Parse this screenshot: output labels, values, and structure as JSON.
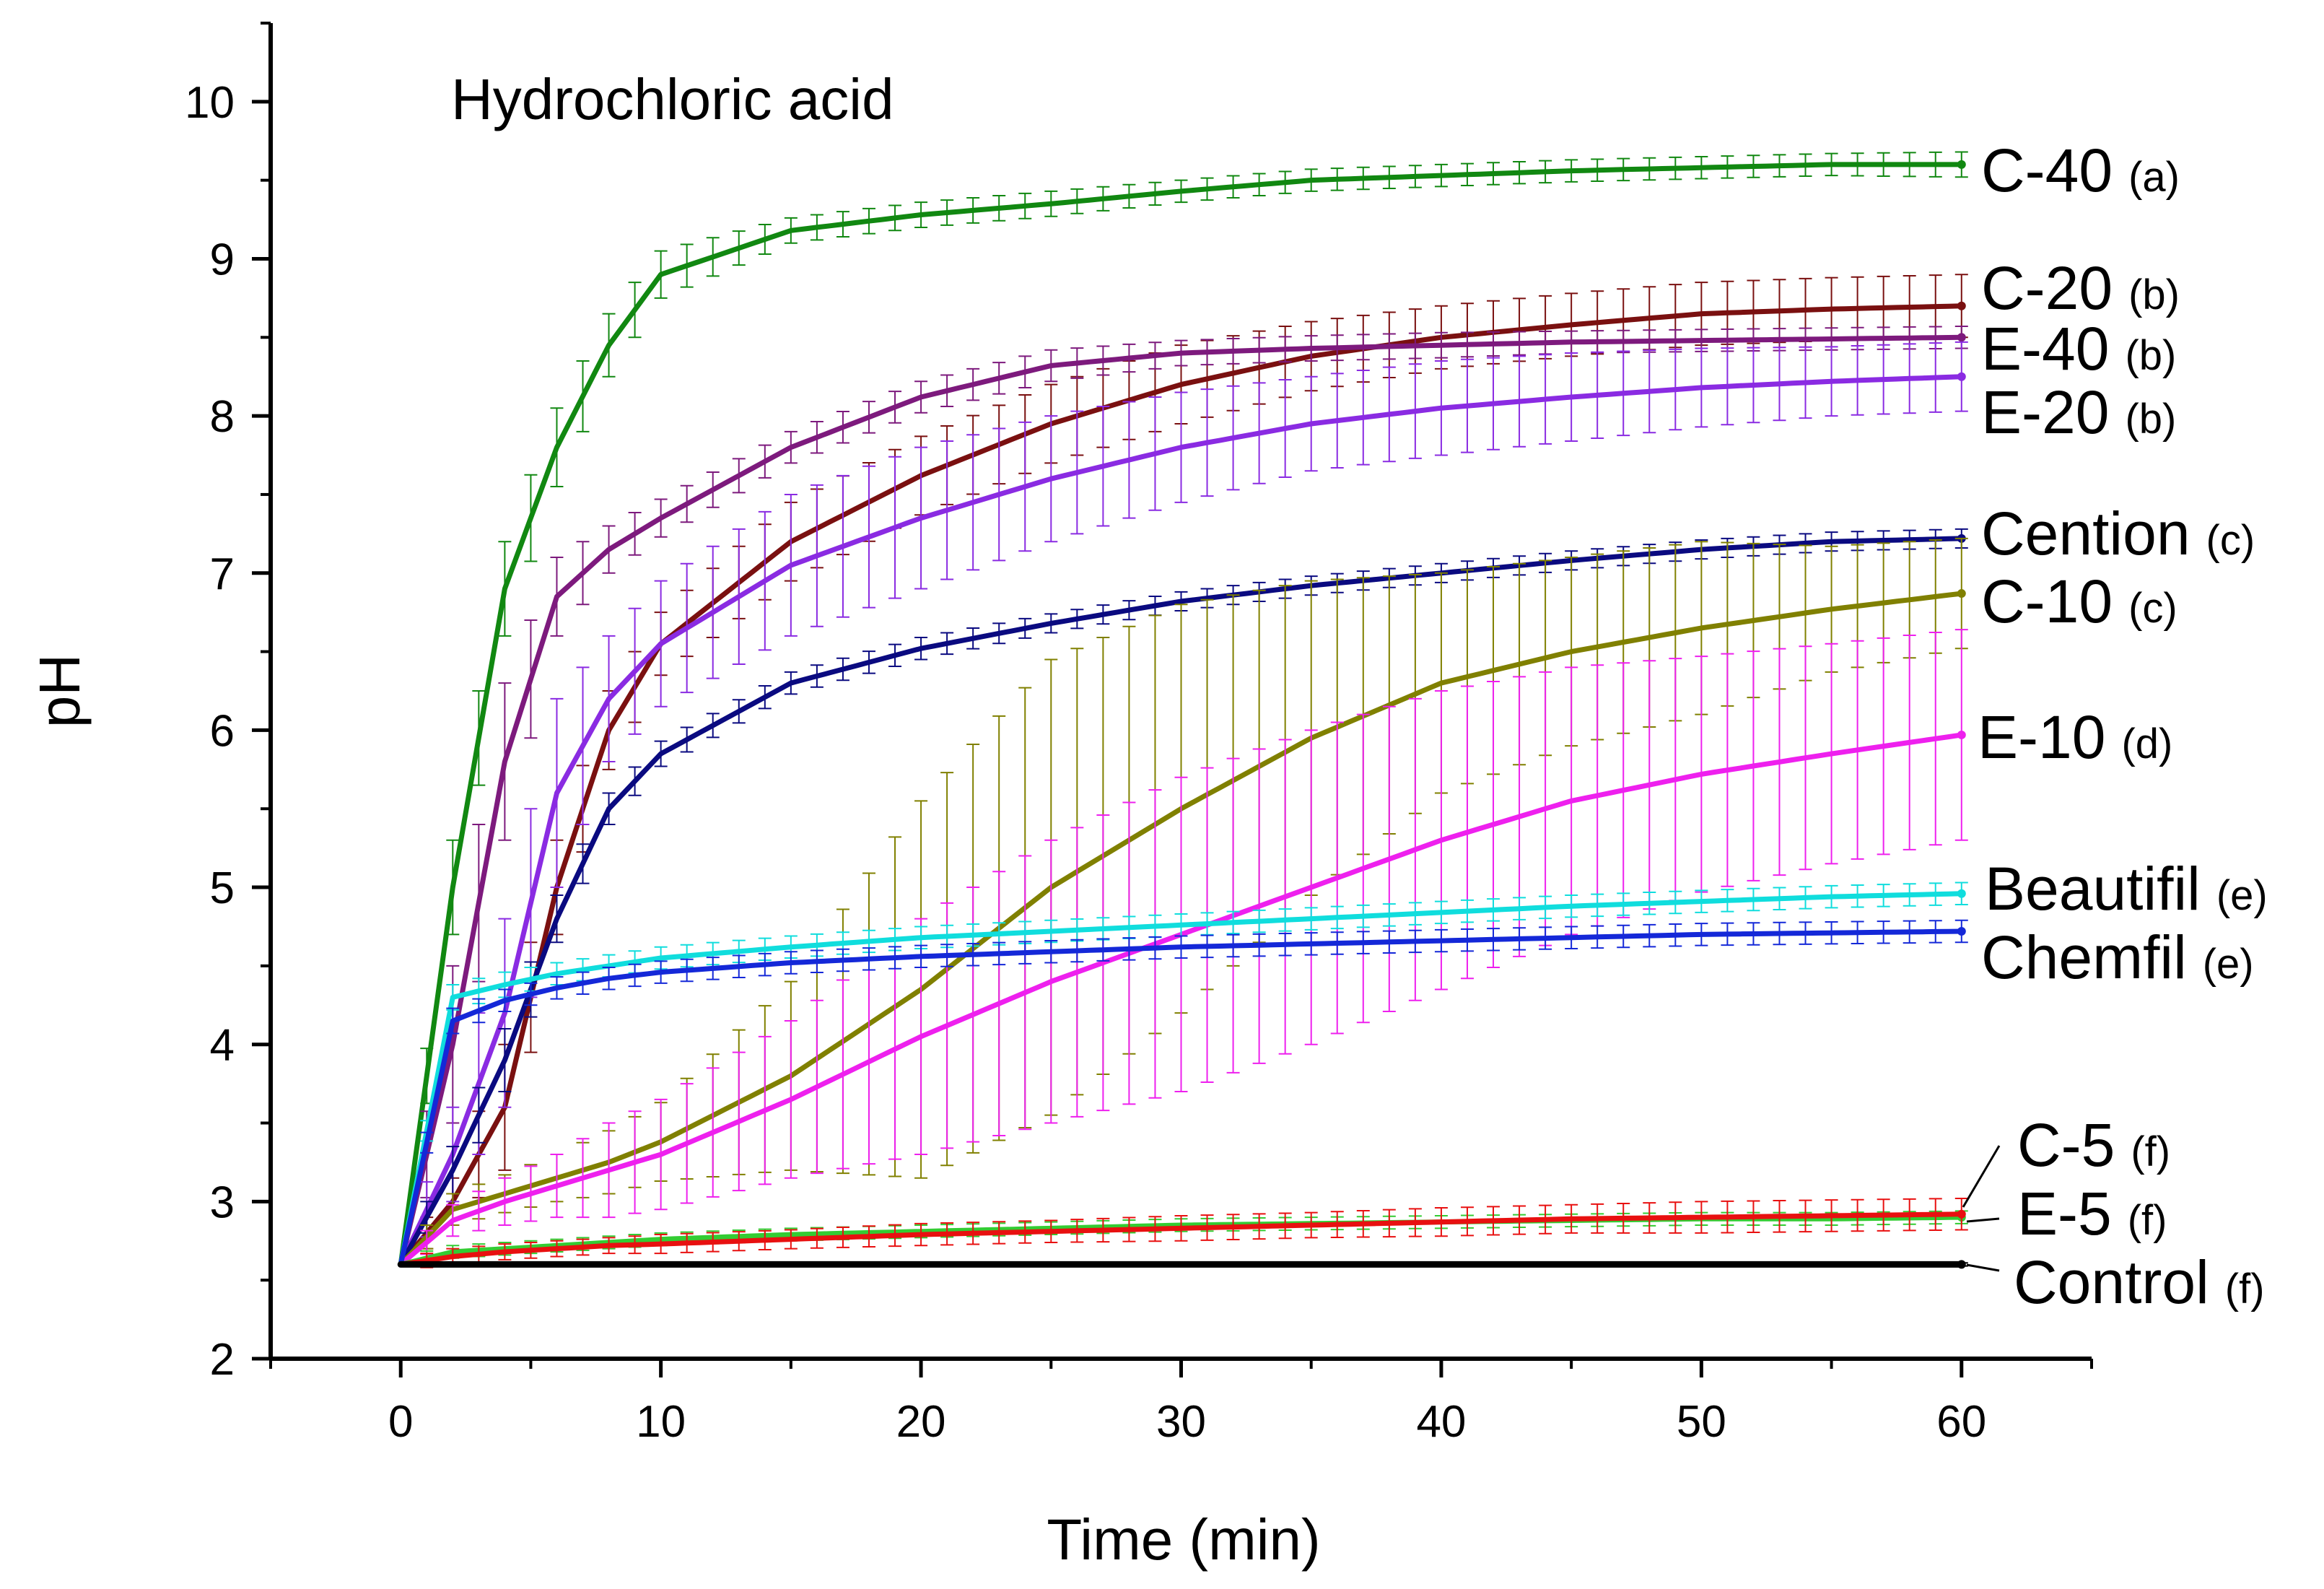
{
  "chart_data": {
    "type": "line",
    "annotation": "Hydrochloric acid",
    "xlabel": "Time (min)",
    "ylabel": "pH",
    "xlim": [
      -5,
      65
    ],
    "ylim": [
      2,
      10.5
    ],
    "xticks": [
      0,
      10,
      20,
      30,
      40,
      50,
      60
    ],
    "yticks": [
      2,
      3,
      4,
      5,
      6,
      7,
      8,
      9,
      10
    ],
    "grid": false,
    "legend": "inline labels at right end of each series",
    "x": [
      0,
      2,
      4,
      6,
      8,
      10,
      15,
      20,
      25,
      30,
      35,
      40,
      45,
      50,
      55,
      60
    ],
    "series": [
      {
        "name": "C-40",
        "group": "(a)",
        "color": "#118811",
        "values": [
          2.6,
          5.0,
          6.9,
          7.8,
          8.45,
          8.9,
          9.18,
          9.28,
          9.35,
          9.43,
          9.5,
          9.53,
          9.56,
          9.58,
          9.6,
          9.6
        ],
        "error": [
          0.05,
          0.3,
          0.3,
          0.25,
          0.2,
          0.15,
          0.08,
          0.08,
          0.08,
          0.07,
          0.07,
          0.07,
          0.07,
          0.07,
          0.07,
          0.08
        ]
      },
      {
        "name": "C-20",
        "group": "(b)",
        "color": "#7a1010",
        "values": [
          2.6,
          3.0,
          3.6,
          5.0,
          6.0,
          6.55,
          7.2,
          7.62,
          7.95,
          8.2,
          8.38,
          8.5,
          8.58,
          8.65,
          8.68,
          8.7
        ],
        "error": [
          0.05,
          0.15,
          0.4,
          0.3,
          0.25,
          0.2,
          0.25,
          0.25,
          0.25,
          0.25,
          0.22,
          0.2,
          0.2,
          0.2,
          0.2,
          0.2
        ]
      },
      {
        "name": "E-40",
        "group": "(b)",
        "color": "#7d1a7d",
        "values": [
          2.6,
          4.0,
          5.8,
          6.85,
          7.15,
          7.35,
          7.8,
          8.12,
          8.32,
          8.4,
          8.43,
          8.45,
          8.47,
          8.48,
          8.49,
          8.5
        ],
        "error": [
          0.05,
          0.5,
          0.5,
          0.25,
          0.15,
          0.12,
          0.1,
          0.1,
          0.1,
          0.08,
          0.08,
          0.08,
          0.07,
          0.07,
          0.07,
          0.07
        ]
      },
      {
        "name": "E-20",
        "group": "(b)",
        "color": "#8a2be2",
        "values": [
          2.6,
          3.3,
          4.2,
          5.6,
          6.2,
          6.55,
          7.05,
          7.35,
          7.6,
          7.8,
          7.95,
          8.05,
          8.12,
          8.18,
          8.22,
          8.25
        ],
        "error": [
          0.05,
          0.3,
          0.6,
          0.6,
          0.4,
          0.4,
          0.45,
          0.45,
          0.4,
          0.35,
          0.3,
          0.3,
          0.28,
          0.25,
          0.22,
          0.22
        ]
      },
      {
        "name": "Cention",
        "group": "(c)",
        "color": "#0a0a80",
        "values": [
          2.6,
          3.2,
          3.9,
          4.8,
          5.5,
          5.85,
          6.3,
          6.52,
          6.68,
          6.82,
          6.92,
          7.0,
          7.08,
          7.15,
          7.2,
          7.22
        ],
        "error": [
          0.05,
          0.15,
          0.2,
          0.15,
          0.1,
          0.08,
          0.07,
          0.07,
          0.06,
          0.06,
          0.06,
          0.06,
          0.06,
          0.06,
          0.06,
          0.06
        ]
      },
      {
        "name": "C-10",
        "group": "(c)",
        "color": "#808000",
        "values": [
          2.6,
          2.95,
          3.05,
          3.15,
          3.25,
          3.38,
          3.8,
          4.35,
          5.0,
          5.5,
          5.95,
          6.3,
          6.5,
          6.65,
          6.77,
          6.87
        ],
        "error": [
          0.05,
          0.1,
          0.12,
          0.15,
          0.2,
          0.25,
          0.6,
          1.2,
          1.45,
          1.3,
          1.0,
          0.7,
          0.6,
          0.55,
          0.4,
          0.35
        ]
      },
      {
        "name": "E-10",
        "group": "(d)",
        "color": "#ee20ee",
        "values": [
          2.6,
          2.88,
          3.0,
          3.1,
          3.2,
          3.3,
          3.65,
          4.05,
          4.4,
          4.7,
          5.0,
          5.3,
          5.55,
          5.72,
          5.85,
          5.97
        ],
        "error": [
          0.05,
          0.1,
          0.15,
          0.2,
          0.3,
          0.35,
          0.5,
          0.75,
          0.9,
          1.0,
          1.0,
          0.95,
          0.85,
          0.75,
          0.7,
          0.67
        ]
      },
      {
        "name": "Beautifil",
        "group": "(e)",
        "color": "#10dddd",
        "values": [
          2.6,
          4.3,
          4.38,
          4.45,
          4.5,
          4.55,
          4.62,
          4.68,
          4.72,
          4.76,
          4.8,
          4.84,
          4.88,
          4.91,
          4.94,
          4.96
        ],
        "error": [
          0.05,
          0.08,
          0.08,
          0.07,
          0.07,
          0.07,
          0.07,
          0.07,
          0.07,
          0.07,
          0.07,
          0.07,
          0.07,
          0.07,
          0.07,
          0.07
        ]
      },
      {
        "name": "Chemfil",
        "group": "(e)",
        "color": "#1428d8",
        "values": [
          2.6,
          4.15,
          4.28,
          4.36,
          4.42,
          4.46,
          4.52,
          4.56,
          4.59,
          4.62,
          4.64,
          4.66,
          4.68,
          4.7,
          4.71,
          4.72
        ],
        "error": [
          0.05,
          0.08,
          0.07,
          0.07,
          0.07,
          0.07,
          0.07,
          0.07,
          0.07,
          0.07,
          0.07,
          0.07,
          0.07,
          0.07,
          0.07,
          0.07
        ]
      },
      {
        "name": "C-5",
        "group": "(f)",
        "color": "#33cc33",
        "values": [
          2.6,
          2.68,
          2.7,
          2.72,
          2.74,
          2.76,
          2.79,
          2.81,
          2.83,
          2.85,
          2.86,
          2.87,
          2.88,
          2.89,
          2.89,
          2.9
        ],
        "error": [
          0.05,
          0.04,
          0.04,
          0.04,
          0.04,
          0.04,
          0.04,
          0.04,
          0.04,
          0.04,
          0.04,
          0.04,
          0.04,
          0.04,
          0.04,
          0.04
        ]
      },
      {
        "name": "E-5",
        "group": "(f)",
        "color": "#e81010",
        "values": [
          2.6,
          2.65,
          2.68,
          2.7,
          2.72,
          2.73,
          2.76,
          2.79,
          2.81,
          2.83,
          2.85,
          2.87,
          2.89,
          2.9,
          2.91,
          2.92
        ],
        "error": [
          0.04,
          0.05,
          0.05,
          0.05,
          0.05,
          0.06,
          0.06,
          0.07,
          0.07,
          0.08,
          0.08,
          0.09,
          0.09,
          0.1,
          0.1,
          0.1
        ]
      },
      {
        "name": "Control",
        "group": "(f)",
        "color": "#000000",
        "values": [
          2.6,
          2.6,
          2.6,
          2.6,
          2.6,
          2.6,
          2.6,
          2.6,
          2.6,
          2.6,
          2.6,
          2.6,
          2.6,
          2.6,
          2.6,
          2.6
        ],
        "error": [
          0.01,
          0.01,
          0.01,
          0.01,
          0.01,
          0.01,
          0.01,
          0.01,
          0.01,
          0.01,
          0.01,
          0.01,
          0.01,
          0.01,
          0.01,
          0.01
        ]
      }
    ]
  }
}
